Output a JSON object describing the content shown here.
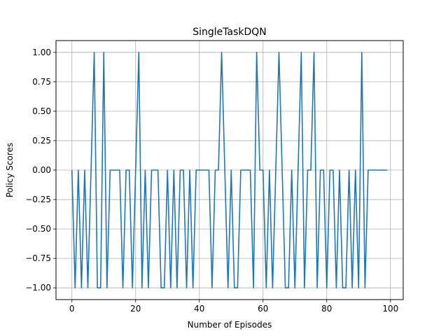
{
  "chart_data": {
    "type": "line",
    "title": "SingleTaskDQN",
    "xlabel": "Number of Episodes",
    "ylabel": "Policy Scores",
    "xlim": [
      -5,
      104
    ],
    "ylim": [
      -1.1,
      1.1
    ],
    "xticks": [
      0,
      20,
      40,
      60,
      80,
      100
    ],
    "yticks": [
      -1.0,
      -0.75,
      -0.5,
      -0.25,
      0.0,
      0.25,
      0.5,
      0.75,
      1.0
    ],
    "xtick_labels": [
      "0",
      "20",
      "40",
      "60",
      "80",
      "100"
    ],
    "ytick_labels": [
      "−1.00",
      "−0.75",
      "−0.50",
      "−0.25",
      "0.00",
      "0.25",
      "0.50",
      "0.75",
      "1.00"
    ],
    "grid": true,
    "series": [
      {
        "color": "#1f77b4",
        "x": [
          0,
          1,
          2,
          3,
          4,
          5,
          6,
          7,
          8,
          9,
          10,
          11,
          12,
          13,
          14,
          15,
          16,
          17,
          18,
          19,
          20,
          21,
          22,
          23,
          24,
          25,
          26,
          27,
          28,
          29,
          30,
          31,
          32,
          33,
          34,
          35,
          36,
          37,
          38,
          39,
          40,
          41,
          42,
          43,
          44,
          45,
          46,
          47,
          48,
          49,
          50,
          51,
          52,
          53,
          54,
          55,
          56,
          57,
          58,
          59,
          60,
          61,
          62,
          63,
          64,
          65,
          66,
          67,
          68,
          69,
          70,
          71,
          72,
          73,
          74,
          75,
          76,
          77,
          78,
          79,
          80,
          81,
          82,
          83,
          84,
          85,
          86,
          87,
          88,
          89,
          90,
          91,
          92,
          93,
          94,
          95,
          96,
          97,
          98,
          99
        ],
        "y": [
          0,
          -1,
          0,
          -1,
          0,
          -1,
          0,
          1,
          -1,
          -1,
          1,
          -1,
          0,
          0,
          0,
          0,
          -1,
          0,
          0,
          -1,
          0,
          1,
          -1,
          0,
          -1,
          0,
          0,
          0,
          -1,
          -1,
          0,
          -1,
          0,
          -1,
          0,
          0,
          -1,
          0,
          -1,
          0,
          0,
          0,
          0,
          0,
          -1,
          0,
          0,
          1,
          0,
          -1,
          0,
          -1,
          -1,
          0,
          0,
          0,
          0,
          -1,
          1,
          0,
          0,
          -1,
          0,
          -1,
          0,
          1,
          0,
          -1,
          -1,
          0,
          -1,
          0,
          1,
          -1,
          0,
          0,
          1,
          -1,
          0,
          0,
          -1,
          0,
          0,
          -1,
          0,
          -1,
          -1,
          0,
          -1,
          0,
          -1,
          1,
          -1,
          0,
          0,
          0,
          0,
          0,
          0,
          0
        ]
      }
    ]
  }
}
